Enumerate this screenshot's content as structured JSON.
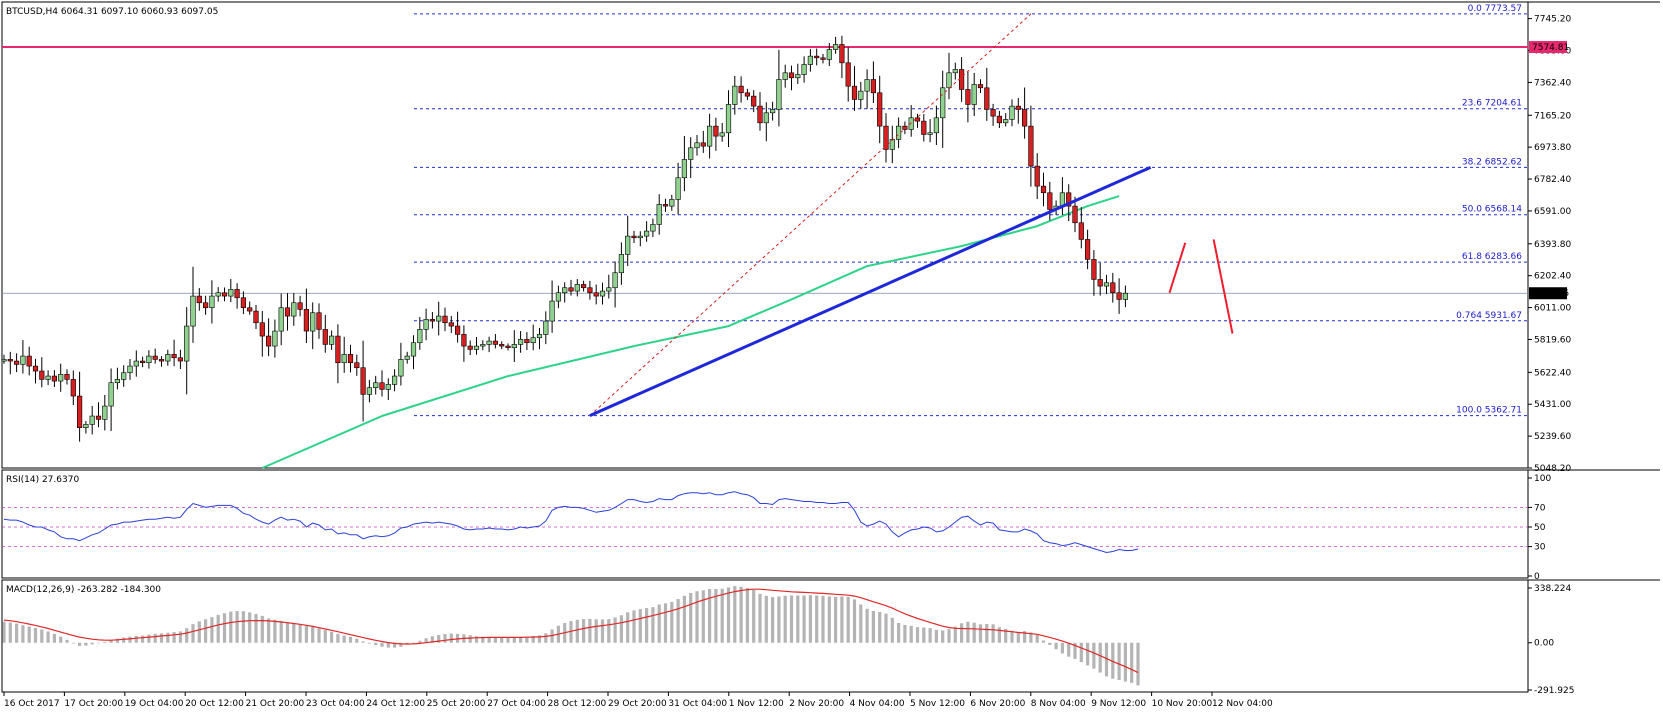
{
  "colors": {
    "background": "#ffffff",
    "frame": "#000000",
    "bull_candle": "#8fd18f",
    "bear_candle": "#d42020",
    "wick": "#000000",
    "ma": "#2ed38a",
    "trendline": "#1f28d8",
    "fib": "#2030c8",
    "resistance": "#e8286e",
    "forecast": "#ee1c2c",
    "rsi_line": "#2a40d8",
    "rsi_level": "#c040c0",
    "macd_hist": "#b4b4b4",
    "macd_signal": "#e02828",
    "current_line": "#7a8aa0"
  },
  "chart_data": [
    {
      "type": "candlestick",
      "title": "BTCUSD,H4  6064.31 6097.10 6060.93 6097.05",
      "symbol": "BTCUSD",
      "timeframe": "H4",
      "last_bar": {
        "open": 6064.31,
        "high": 6097.1,
        "low": 6060.93,
        "close": 6097.05
      },
      "ylim": [
        5048.2,
        7845
      ],
      "y_ticks": [
        "7745.20",
        "7553.80",
        "7362.40",
        "7165.20",
        "6973.80",
        "6782.40",
        "6591.00",
        "6393.80",
        "6202.40",
        "6011.00",
        "5819.60",
        "5622.40",
        "5431.00",
        "5239.60",
        "5048.20"
      ],
      "x_ticks": [
        "16 Oct 2017",
        "17 Oct 20:00",
        "19 Oct 04:00",
        "20 Oct 12:00",
        "21 Oct 20:00",
        "23 Oct 04:00",
        "24 Oct 12:00",
        "25 Oct 20:00",
        "27 Oct 04:00",
        "28 Oct 12:00",
        "29 Oct 20:00",
        "31 Oct 04:00",
        "1 Nov 12:00",
        "2 Nov 20:00",
        "4 Nov 04:00",
        "5 Nov 12:00",
        "6 Nov 20:00",
        "8 Nov 04:00",
        "9 Nov 12:00",
        "10 Nov 20:00",
        "12 Nov 04:00"
      ],
      "x_domain": [
        0,
        204
      ],
      "closes": [
        5700,
        5690,
        5670,
        5720,
        5660,
        5630,
        5580,
        5600,
        5570,
        5610,
        5580,
        5480,
        5290,
        5310,
        5360,
        5340,
        5420,
        5560,
        5580,
        5620,
        5660,
        5690,
        5680,
        5720,
        5700,
        5690,
        5730,
        5710,
        5690,
        5900,
        6080,
        6040,
        6010,
        6080,
        6100,
        6080,
        6120,
        6070,
        6010,
        5990,
        5920,
        5840,
        5780,
        5870,
        6010,
        5960,
        6040,
        6000,
        5870,
        5980,
        5880,
        5790,
        5840,
        5680,
        5730,
        5680,
        5650,
        5490,
        5530,
        5560,
        5520,
        5550,
        5600,
        5700,
        5720,
        5800,
        5880,
        5940,
        5930,
        5960,
        5920,
        5900,
        5850,
        5780,
        5760,
        5780,
        5790,
        5810,
        5790,
        5780,
        5770,
        5790,
        5820,
        5800,
        5830,
        5850,
        5930,
        6050,
        6100,
        6130,
        6110,
        6150,
        6130,
        6100,
        6080,
        6110,
        6130,
        6220,
        6330,
        6440,
        6430,
        6440,
        6470,
        6510,
        6630,
        6620,
        6660,
        6790,
        6900,
        6970,
        7000,
        6980,
        7100,
        7040,
        7060,
        7230,
        7340,
        7300,
        7280,
        7220,
        7120,
        7180,
        7200,
        7380,
        7420,
        7390,
        7410,
        7470,
        7520,
        7510,
        7500,
        7560,
        7590,
        7480,
        7340,
        7260,
        7310,
        7380,
        7300,
        7100,
        6960,
        7020,
        7100,
        7080,
        7150,
        7130,
        7050,
        7060,
        7150,
        7330,
        7420,
        7440,
        7320,
        7230,
        7350,
        7330,
        7200,
        7160,
        7120,
        7140,
        7220,
        7200,
        7100,
        6860,
        6740,
        6700,
        6600,
        6620,
        6700,
        6620,
        6520,
        6420,
        6300,
        6180,
        6140,
        6160,
        6100,
        6060,
        6097
      ],
      "ma_period": 100,
      "ma_anchor_points": [
        [
          41,
          5048.2
        ],
        [
          60,
          5360
        ],
        [
          80,
          5600
        ],
        [
          100,
          5780
        ],
        [
          115,
          5900
        ],
        [
          125,
          6060
        ],
        [
          137,
          6260
        ],
        [
          152,
          6380
        ],
        [
          164,
          6500
        ],
        [
          172,
          6620
        ],
        [
          177,
          6680
        ]
      ],
      "trendline": {
        "x": [
          93,
          182
        ],
        "y": [
          5362.71,
          6852.62
        ]
      },
      "dashed_trend": {
        "x": [
          93,
          163
        ],
        "y": [
          5362.71,
          7773.57
        ]
      },
      "resistance_level": {
        "value": 7574.81,
        "label": "7574.81"
      },
      "current_price": {
        "value": 6097.05,
        "label": "6097.05"
      },
      "fib_levels": [
        {
          "label": "0.0  7773.57",
          "value": 7773.57
        },
        {
          "label": "23.6  7204.61",
          "value": 7204.61
        },
        {
          "label": "38.2  6852.62",
          "value": 6852.62
        },
        {
          "label": "50.0  6568.14",
          "value": 6568.14
        },
        {
          "label": "61.8  6283.66",
          "value": 6283.66
        },
        {
          "label": "0.764  5931.67",
          "value": 5931.67
        },
        {
          "label": "100.0  5362.71",
          "value": 5362.71
        }
      ],
      "forecast_path": [
        [
          185,
          6100
        ],
        [
          187.5,
          6400
        ],
        [
          192,
          6420
        ],
        [
          195,
          5855
        ]
      ]
    },
    {
      "type": "line",
      "title": "RSI(14) 27.6370",
      "ylim": [
        0,
        100
      ],
      "y_ticks": [
        "100",
        "70",
        "50",
        "30",
        "0"
      ],
      "levels": [
        70,
        50,
        30
      ],
      "values": [
        58,
        57,
        57,
        55,
        52,
        50,
        50,
        47,
        45,
        40,
        38,
        38,
        36,
        39,
        42,
        44,
        48,
        52,
        53,
        55,
        55,
        56,
        57,
        58,
        58,
        59,
        60,
        59,
        60,
        68,
        74,
        72,
        70,
        71,
        72,
        72,
        72,
        69,
        64,
        62,
        58,
        55,
        53,
        57,
        60,
        57,
        58,
        56,
        50,
        54,
        52,
        47,
        48,
        43,
        44,
        42,
        42,
        38,
        40,
        41,
        40,
        41,
        44,
        49,
        50,
        53,
        54,
        55,
        54,
        55,
        54,
        53,
        51,
        48,
        47,
        48,
        48,
        49,
        48,
        48,
        47,
        48,
        50,
        49,
        50,
        51,
        56,
        67,
        70,
        71,
        70,
        70,
        69,
        67,
        65,
        66,
        67,
        70,
        74,
        78,
        78,
        76,
        75,
        76,
        79,
        78,
        78,
        82,
        84,
        85,
        85,
        84,
        85,
        83,
        83,
        85,
        86,
        84,
        83,
        80,
        74,
        74,
        73,
        78,
        79,
        78,
        77,
        76,
        76,
        75,
        75,
        74,
        74,
        75,
        75,
        67,
        55,
        51,
        53,
        56,
        53,
        45,
        40,
        44,
        47,
        48,
        50,
        49,
        45,
        46,
        50,
        55,
        60,
        61,
        56,
        52,
        55,
        54,
        47,
        46,
        45,
        45,
        48,
        46,
        43,
        36,
        34,
        33,
        31,
        32,
        34,
        32,
        30,
        28,
        26,
        24,
        25,
        27,
        26,
        26,
        27.6
      ]
    },
    {
      "type": "bar",
      "title": "MACD(12,26,9) -263.282 -184.300",
      "ylim": [
        -291.925,
        338.224
      ],
      "y_ticks": [
        "338.224",
        "0.00",
        "-291.925"
      ],
      "histogram": [
        130,
        125,
        118,
        108,
        100,
        92,
        82,
        70,
        55,
        38,
        18,
        -5,
        -20,
        -18,
        -10,
        -2,
        5,
        15,
        25,
        32,
        38,
        42,
        44,
        50,
        55,
        58,
        62,
        66,
        70,
        90,
        115,
        132,
        145,
        158,
        172,
        182,
        192,
        196,
        195,
        188,
        178,
        166,
        150,
        142,
        135,
        128,
        122,
        116,
        105,
        98,
        88,
        78,
        68,
        55,
        45,
        36,
        25,
        8,
        -5,
        -15,
        -25,
        -30,
        -30,
        -25,
        -12,
        0,
        12,
        28,
        40,
        48,
        54,
        56,
        55,
        52,
        46,
        40,
        38,
        36,
        34,
        32,
        30,
        32,
        36,
        38,
        42,
        46,
        58,
        82,
        105,
        122,
        134,
        142,
        146,
        148,
        145,
        144,
        146,
        156,
        170,
        188,
        200,
        208,
        214,
        220,
        236,
        244,
        252,
        270,
        290,
        308,
        318,
        324,
        332,
        332,
        334,
        342,
        350,
        346,
        338,
        326,
        302,
        290,
        282,
        286,
        290,
        292,
        292,
        292,
        294,
        292,
        290,
        286,
        284,
        286,
        284,
        268,
        236,
        210,
        196,
        190,
        180,
        154,
        122,
        110,
        104,
        96,
        94,
        90,
        80,
        76,
        84,
        100,
        120,
        130,
        124,
        114,
        116,
        114,
        96,
        86,
        74,
        68,
        72,
        64,
        50,
        14,
        -14,
        -40,
        -66,
        -86,
        -100,
        -120,
        -140,
        -160,
        -184,
        -208,
        -222,
        -230,
        -240,
        -248,
        -263.282
      ],
      "signal": [
        140,
        136,
        130,
        123,
        115,
        107,
        98,
        88,
        77,
        66,
        55,
        44,
        35,
        28,
        22,
        18,
        16,
        16,
        18,
        21,
        24,
        28,
        31,
        35,
        38,
        42,
        45,
        49,
        53,
        60,
        70,
        80,
        90,
        100,
        110,
        118,
        125,
        130,
        134,
        136,
        137,
        137,
        135,
        132,
        128,
        124,
        119,
        114,
        108,
        101,
        93,
        85,
        77,
        68,
        59,
        50,
        41,
        32,
        23,
        15,
        8,
        1,
        -4,
        -7,
        -8,
        -7,
        -4,
        0,
        5,
        10,
        15,
        20,
        24,
        27,
        29,
        31,
        32,
        33,
        33,
        33,
        33,
        33,
        33,
        34,
        35,
        36,
        39,
        45,
        53,
        62,
        71,
        80,
        88,
        95,
        101,
        106,
        111,
        117,
        124,
        132,
        141,
        150,
        159,
        168,
        178,
        188,
        198,
        210,
        223,
        237,
        251,
        264,
        276,
        287,
        297,
        307,
        316,
        323,
        328,
        331,
        331,
        328,
        324,
        321,
        318,
        315,
        313,
        311,
        309,
        307,
        305,
        302,
        299,
        297,
        294,
        288,
        278,
        266,
        253,
        241,
        229,
        214,
        196,
        179,
        164,
        150,
        138,
        126,
        114,
        102,
        94,
        89,
        88,
        87,
        86,
        84,
        82,
        80,
        76,
        72,
        68,
        63,
        60,
        56,
        52,
        43,
        33,
        22,
        10,
        -3,
        -17,
        -32,
        -47,
        -63,
        -80,
        -98,
        -115,
        -132,
        -148,
        -166,
        -184.3
      ]
    }
  ]
}
